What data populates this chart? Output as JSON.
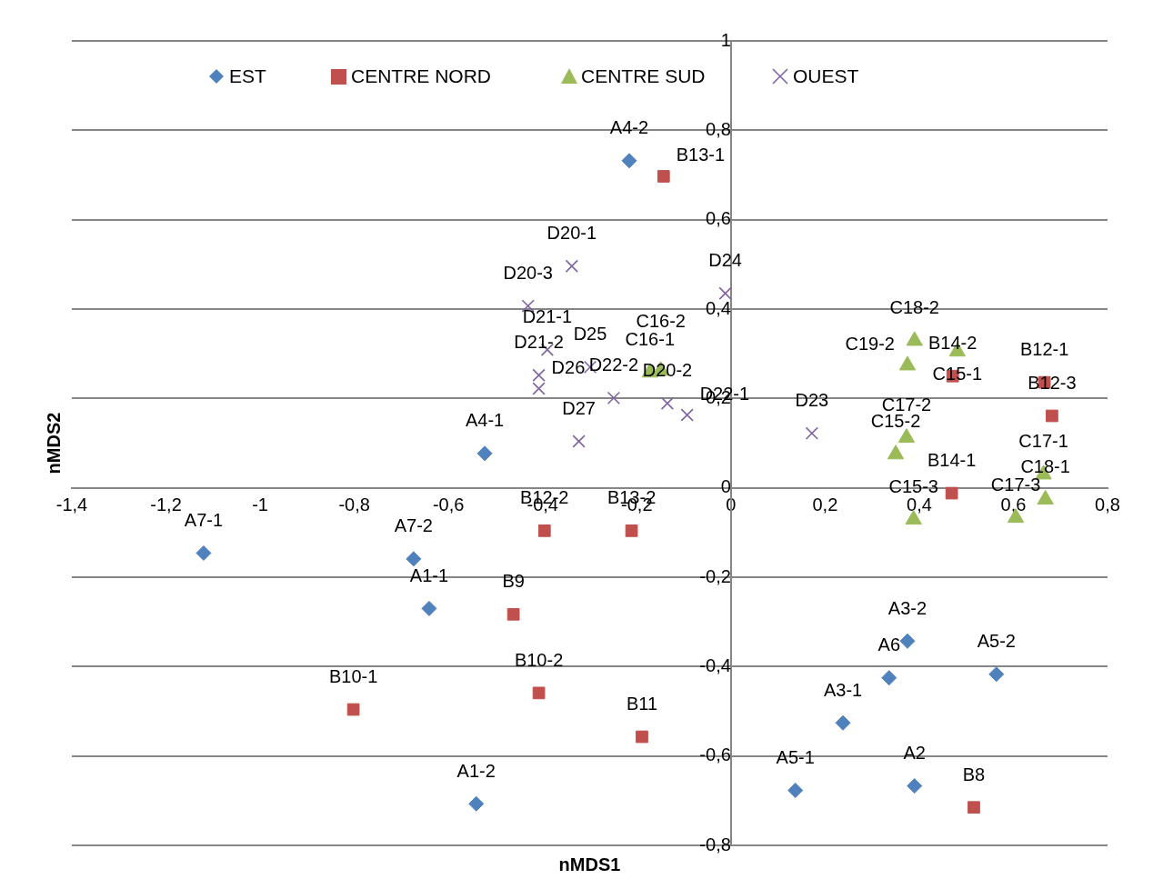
{
  "chart_data": {
    "type": "scatter",
    "xlabel": "nMDS1",
    "ylabel": "nMDS2",
    "xlim": [
      -1.4,
      0.8
    ],
    "ylim": [
      -0.8,
      1
    ],
    "xticks": [
      {
        "value": -1.4,
        "label": "-1,4"
      },
      {
        "value": -1.2,
        "label": "-1,2"
      },
      {
        "value": -1,
        "label": "-1"
      },
      {
        "value": -0.8,
        "label": "-0,8"
      },
      {
        "value": -0.6,
        "label": "-0,6"
      },
      {
        "value": -0.4,
        "label": "-0,4"
      },
      {
        "value": -0.2,
        "label": "-0,2"
      },
      0,
      {
        "value": 0.2,
        "label": "0,2"
      },
      {
        "value": 0.4,
        "label": "0,4"
      },
      {
        "value": 0.6,
        "label": "0,6"
      },
      {
        "value": 0.8,
        "label": "0,8"
      }
    ],
    "yticks": [
      {
        "value": -0.8,
        "label": "-0,8"
      },
      {
        "value": -0.6,
        "label": "-0,6"
      },
      {
        "value": -0.4,
        "label": "-0,4"
      },
      {
        "value": -0.2,
        "label": "-0,2"
      },
      0,
      {
        "value": 0.2,
        "label": "0,2"
      },
      {
        "value": 0.4,
        "label": "0,4"
      },
      {
        "value": 0.6,
        "label": "0,6"
      },
      {
        "value": 0.8,
        "label": "0,8"
      },
      1
    ],
    "grid": "y",
    "legend": "top",
    "series": [
      {
        "name": "EST",
        "color": "#4f81bd",
        "marker": "diamond",
        "x": [
          -0.216,
          -0.523,
          -1.12,
          -0.674,
          -0.641,
          -0.541,
          0.375,
          0.336,
          0.564,
          0.238,
          0.137,
          0.39
        ],
        "values": [
          0.732,
          0.077,
          -0.146,
          -0.159,
          -0.27,
          -0.707,
          -0.343,
          -0.425,
          -0.417,
          -0.526,
          -0.677,
          -0.667
        ]
      },
      {
        "name": "CENTRE NORD",
        "color": "#c0504d",
        "marker": "square",
        "x": [
          -0.143,
          0.666,
          0.682,
          0.471,
          0.469,
          -0.396,
          -0.211,
          -0.462,
          -0.408,
          -0.802,
          -0.189,
          0.516
        ],
        "values": [
          0.697,
          0.236,
          0.161,
          0.25,
          -0.012,
          -0.096,
          -0.096,
          -0.283,
          -0.459,
          -0.496,
          -0.557,
          -0.715
        ]
      },
      {
        "name": "CENTRE SUD",
        "color": "#9bbb59",
        "marker": "triangle",
        "x": [
          0.39,
          0.375,
          0.481,
          0.373,
          0.35,
          0.664,
          0.668,
          0.605,
          0.388,
          -0.172,
          -0.149
        ],
        "values": [
          0.329,
          0.274,
          0.305,
          0.112,
          0.075,
          0.03,
          -0.026,
          -0.067,
          -0.071,
          0.258,
          0.262
        ]
      },
      {
        "name": "OUEST",
        "color": "#8064a2",
        "marker": "cross",
        "x": [
          -0.338,
          -0.431,
          -0.012,
          -0.39,
          -0.408,
          -0.408,
          -0.299,
          -0.249,
          -0.323,
          -0.135,
          -0.093,
          0.172
        ],
        "values": [
          0.496,
          0.407,
          0.435,
          0.309,
          0.252,
          0.222,
          0.27,
          0.201,
          0.104,
          0.189,
          0.163,
          0.122
        ]
      }
    ],
    "annotations": [
      {
        "text": "A4-2",
        "x": -0.216,
        "y": 0.732
      },
      {
        "text": "A4-1",
        "x": -0.523,
        "y": 0.077
      },
      {
        "text": "A7-1",
        "x": -1.12,
        "y": -0.146
      },
      {
        "text": "A7-2",
        "x": -0.674,
        "y": -0.159
      },
      {
        "text": "A1-1",
        "x": -0.641,
        "y": -0.27
      },
      {
        "text": "A1-2",
        "x": -0.541,
        "y": -0.707
      },
      {
        "text": "A3-2",
        "x": 0.375,
        "y": -0.343
      },
      {
        "text": "A6",
        "x": 0.336,
        "y": -0.425
      },
      {
        "text": "A5-2",
        "x": 0.564,
        "y": -0.417
      },
      {
        "text": "A3-1",
        "x": 0.238,
        "y": -0.526
      },
      {
        "text": "A5-1",
        "x": 0.137,
        "y": -0.677
      },
      {
        "text": "A2",
        "x": 0.39,
        "y": -0.667
      },
      {
        "text": "B13-1",
        "x": -0.143,
        "y": 0.697
      },
      {
        "text": "B12-1",
        "x": 0.666,
        "y": 0.236
      },
      {
        "text": "B12-3",
        "x": 0.682,
        "y": 0.161
      },
      {
        "text": "B14-2",
        "x": 0.471,
        "y": 0.25
      },
      {
        "text": "B14-1",
        "x": 0.469,
        "y": -0.012
      },
      {
        "text": "B12-2",
        "x": -0.396,
        "y": -0.096
      },
      {
        "text": "B13-2",
        "x": -0.211,
        "y": -0.096
      },
      {
        "text": "B9",
        "x": -0.462,
        "y": -0.283
      },
      {
        "text": "B10-2",
        "x": -0.408,
        "y": -0.459
      },
      {
        "text": "B10-1",
        "x": -0.802,
        "y": -0.496
      },
      {
        "text": "B11",
        "x": -0.189,
        "y": -0.557
      },
      {
        "text": "B8",
        "x": 0.516,
        "y": -0.715
      },
      {
        "text": "C18-2",
        "x": 0.39,
        "y": 0.329
      },
      {
        "text": "C19-2",
        "x": 0.375,
        "y": 0.274
      },
      {
        "text": "C15-1",
        "x": 0.481,
        "y": 0.305
      },
      {
        "text": "C17-2",
        "x": 0.373,
        "y": 0.112
      },
      {
        "text": "C15-2",
        "x": 0.35,
        "y": 0.075
      },
      {
        "text": "C17-1",
        "x": 0.664,
        "y": 0.03
      },
      {
        "text": "C18-1",
        "x": 0.668,
        "y": -0.026
      },
      {
        "text": "C17-3",
        "x": 0.605,
        "y": -0.067
      },
      {
        "text": "C15-3",
        "x": 0.388,
        "y": -0.071
      },
      {
        "text": "C16-1",
        "x": -0.172,
        "y": 0.258
      },
      {
        "text": "C16-2",
        "x": -0.149,
        "y": 0.262
      },
      {
        "text": "D20-1",
        "x": -0.338,
        "y": 0.496
      },
      {
        "text": "D20-3",
        "x": -0.431,
        "y": 0.407
      },
      {
        "text": "D24",
        "x": -0.012,
        "y": 0.435
      },
      {
        "text": "D21-1",
        "x": -0.39,
        "y": 0.309
      },
      {
        "text": "D21-2",
        "x": -0.408,
        "y": 0.252
      },
      {
        "text": "D26",
        "x": -0.408,
        "y": 0.222
      },
      {
        "text": "D25",
        "x": -0.299,
        "y": 0.27
      },
      {
        "text": "D22-2",
        "x": -0.249,
        "y": 0.201
      },
      {
        "text": "D27",
        "x": -0.323,
        "y": 0.104
      },
      {
        "text": "D20-2",
        "x": -0.135,
        "y": 0.189
      },
      {
        "text": "D22-1",
        "x": -0.093,
        "y": 0.163
      },
      {
        "text": "D23",
        "x": 0.172,
        "y": 0.122
      }
    ]
  }
}
